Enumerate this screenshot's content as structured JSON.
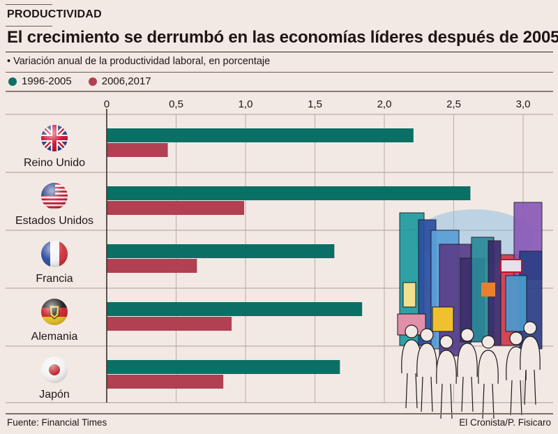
{
  "header": {
    "kicker": "PRODUCTIVIDAD",
    "title": "El crecimiento se derrumbó en las economías líderes después de 2005",
    "subtitle": "• Variación anual de la productividad laboral, en porcentaje"
  },
  "legend": [
    {
      "label": "1996-2005",
      "color": "#0a7066"
    },
    {
      "label": "2006,2017",
      "color": "#b04052"
    }
  ],
  "footer": {
    "source": "Fuente: Financial Times",
    "credit": "El Cronista/P. Fisicaro"
  },
  "chart_data": {
    "type": "bar",
    "orientation": "horizontal",
    "title": "El crecimiento se derrumbó en las economías líderes después de 2005",
    "subtitle": "Variación anual de la productividad laboral, en porcentaje",
    "xlabel": "",
    "ylabel": "",
    "xlim": [
      0,
      3.0
    ],
    "x_ticks": [
      0,
      0.5,
      1.0,
      1.5,
      2.0,
      2.5,
      3.0
    ],
    "x_tick_labels": [
      "0",
      "0,5",
      "1,0",
      "1,5",
      "2,0",
      "2,5",
      "3,0"
    ],
    "grid": true,
    "legend_position": "top-left",
    "categories": [
      "Reino Unido",
      "Estados Unidos",
      "Francia",
      "Alemania",
      "Japón"
    ],
    "category_icons": [
      "uk-flag-icon",
      "us-flag-icon",
      "france-flag-icon",
      "germany-flag-icon",
      "japan-flag-icon"
    ],
    "series": [
      {
        "name": "1996-2005",
        "color": "#0a7066",
        "values": [
          2.21,
          2.62,
          1.64,
          1.84,
          1.68
        ]
      },
      {
        "name": "2006,2017",
        "color": "#b04052",
        "values": [
          0.44,
          0.99,
          0.65,
          0.9,
          0.84
        ]
      }
    ]
  }
}
